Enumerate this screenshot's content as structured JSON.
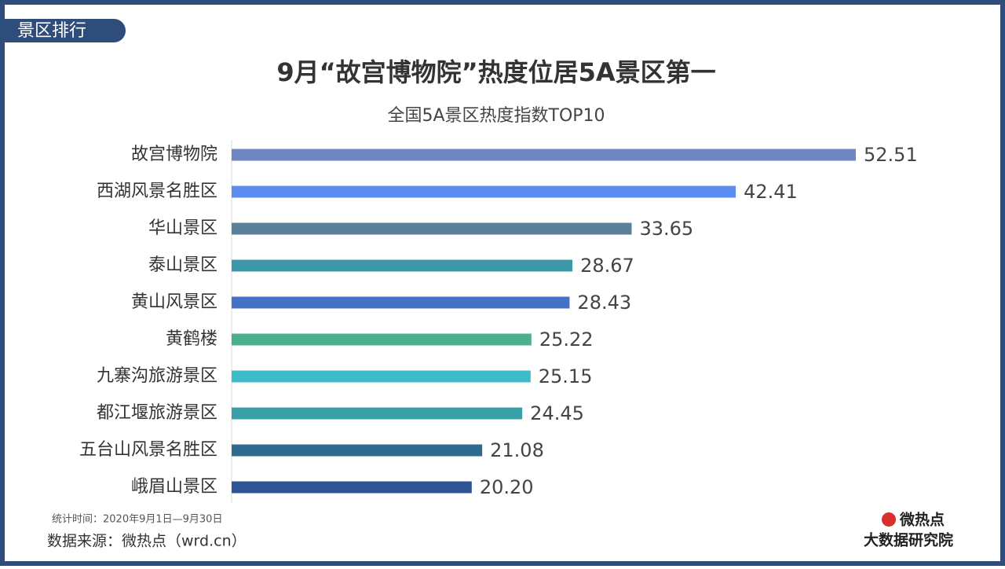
{
  "header": "景区排行",
  "chart_data": {
    "type": "bar",
    "orientation": "horizontal",
    "title": "9月“故宫博物院”热度位居5A景区第一",
    "subtitle": "全国5A景区热度指数TOP10",
    "categories": [
      "故宫博物院",
      "西湖风景名胜区",
      "华山景区",
      "泰山景区",
      "黄山风景区",
      "黄鹤楼",
      "九寨沟旅游景区",
      "都江堰旅游景区",
      "五台山风景名胜区",
      "峨眉山景区"
    ],
    "values": [
      52.51,
      42.41,
      33.65,
      28.67,
      28.43,
      25.22,
      25.15,
      24.45,
      21.08,
      20.2
    ],
    "value_labels": [
      "52.51",
      "42.41",
      "33.65",
      "28.67",
      "28.43",
      "25.22",
      "25.15",
      "24.45",
      "21.08",
      "20.20"
    ],
    "colors": [
      "#6e86c2",
      "#5b8ef0",
      "#5a7f99",
      "#3d98a8",
      "#4472c4",
      "#4bb08b",
      "#3bbcc6",
      "#3aa0a8",
      "#2e6b8f",
      "#2f5597"
    ]
  },
  "footer": {
    "period": "统计时间：2020年9月1日—9月30日",
    "source": "数据来源：微热点（wrd.cn）",
    "logo": "微热点",
    "logo_sub": "大数据研究院"
  }
}
